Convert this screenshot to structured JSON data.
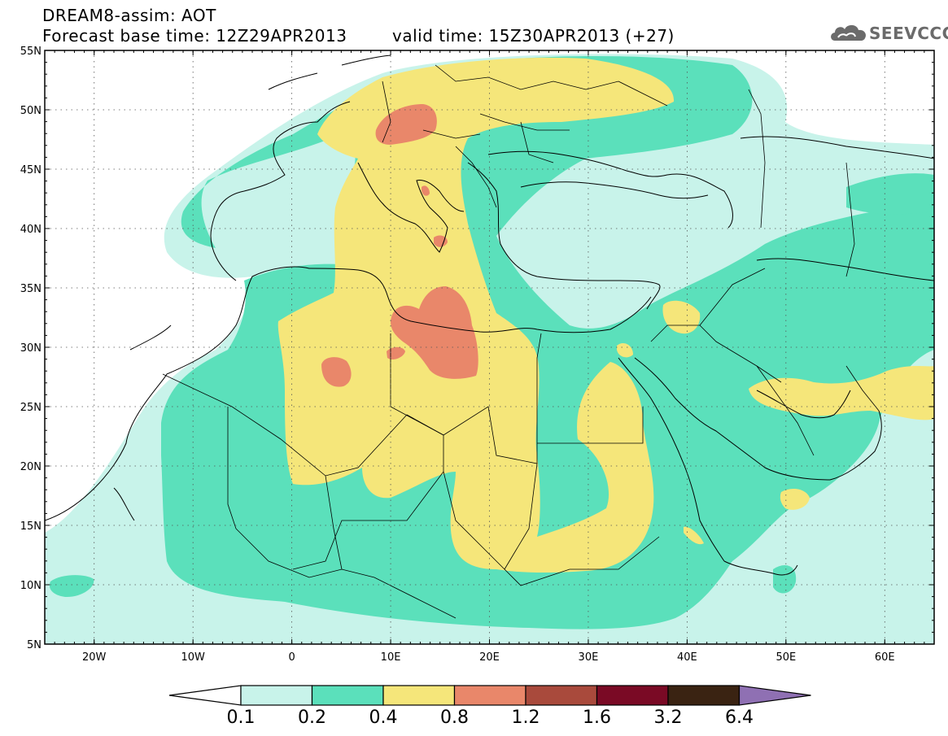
{
  "header": {
    "model_line": "DREAM8-assim: AOT",
    "base_time": "Forecast base time: 12Z29APR2013",
    "valid_time": "valid time: 15Z30APR2013 (+27)"
  },
  "logo": {
    "text": "SEEVCCC",
    "icon": "cloud-icon"
  },
  "map": {
    "lat_labels": [
      "55N",
      "50N",
      "45N",
      "40N",
      "35N",
      "30N",
      "25N",
      "20N",
      "15N",
      "10N",
      "5N"
    ],
    "lon_labels": [
      "20W",
      "10W",
      "0",
      "10E",
      "20E",
      "30E",
      "40E",
      "50E",
      "60E"
    ],
    "lat_range": [
      5,
      55
    ],
    "lon_range": [
      -25,
      65
    ],
    "grid": "dotted"
  },
  "colorbar": {
    "labels": [
      "0.1",
      "0.2",
      "0.4",
      "0.8",
      "1.2",
      "1.6",
      "3.2",
      "6.4"
    ],
    "colors": [
      "#ffffff",
      "#c8f3ea",
      "#5be0bb",
      "#f5e67a",
      "#e9876a",
      "#a94a3c",
      "#7a0a25",
      "#3a2312",
      "#8f70b3"
    ]
  },
  "colors": {
    "band_0_1": "#c8f3ea",
    "band_0_2": "#5be0bb",
    "band_0_4": "#f5e67a",
    "band_0_8": "#e9876a"
  }
}
